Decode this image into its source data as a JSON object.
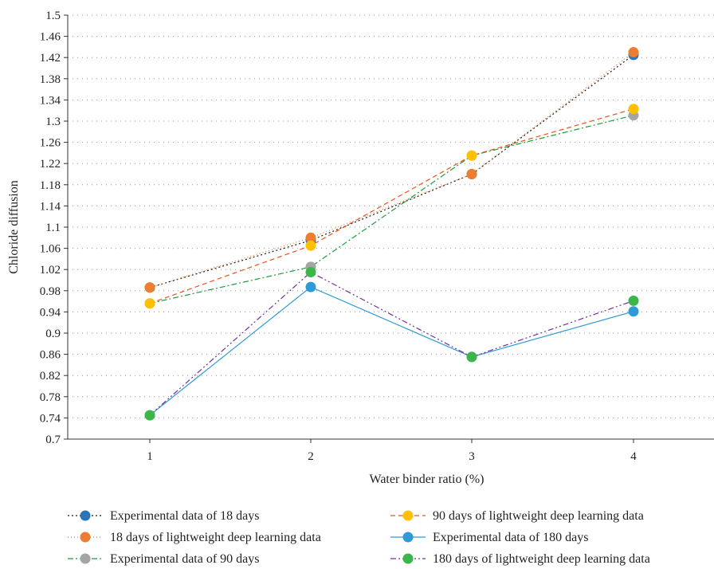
{
  "chart_data": {
    "type": "line",
    "xlabel": "Water binder ratio (%)",
    "ylabel": "Chloride diffusion",
    "x": [
      1,
      2,
      3,
      4
    ],
    "ylim": [
      0.7,
      1.5
    ],
    "yticks": [
      "0.7",
      "0.74",
      "0.78",
      "0.82",
      "0.86",
      "0.9",
      "0.94",
      "0.98",
      "1.02",
      "1.06",
      "1.1",
      "1.14",
      "1.18",
      "1.22",
      "1.26",
      "1.3",
      "1.34",
      "1.38",
      "1.42",
      "1.46",
      "1.5"
    ],
    "xticks": [
      "1",
      "2",
      "3",
      "4"
    ],
    "grid": "horizontal dotted",
    "legend_position": "bottom",
    "series": [
      {
        "name": "Experimental data of 18 days",
        "values": [
          0.986,
          1.075,
          1.2,
          1.425
        ],
        "color": "#2E75B6",
        "dash": "2,3",
        "line_color": "#1a1a1a",
        "legend_col": 0,
        "legend_row": 0
      },
      {
        "name": "18 days of lightweight deep learning data",
        "values": [
          0.986,
          1.08,
          1.2,
          1.43
        ],
        "color": "#ED7D31",
        "dash": "1,3",
        "line_color": "#ED7D31",
        "legend_col": 0,
        "legend_row": 1
      },
      {
        "name": "Experimental data of 90 days",
        "values": [
          0.956,
          1.025,
          1.235,
          1.311
        ],
        "color": "#A5A5A5",
        "dash": "7,3,2,3",
        "line_color": "#1a9e3a",
        "legend_col": 0,
        "legend_row": 2
      },
      {
        "name": "90 days of lightweight deep learning data",
        "values": [
          0.956,
          1.065,
          1.235,
          1.323
        ],
        "color": "#FFC000",
        "dash": "6,4",
        "line_color": "#E8541C",
        "legend_col": 1,
        "legend_row": 0
      },
      {
        "name": "Experimental data of 180 days",
        "values": [
          0.745,
          0.987,
          0.855,
          0.941
        ],
        "color": "#2E9BD6",
        "dash": "",
        "line_color": "#2E9BD6",
        "legend_col": 1,
        "legend_row": 1
      },
      {
        "name": "180 days of lightweight deep learning data",
        "values": [
          0.745,
          1.015,
          0.855,
          0.961
        ],
        "color": "#3CB54A",
        "dash": "7,3,2,3,2,3",
        "line_color": "#7030A0",
        "legend_col": 1,
        "legend_row": 2
      }
    ]
  }
}
